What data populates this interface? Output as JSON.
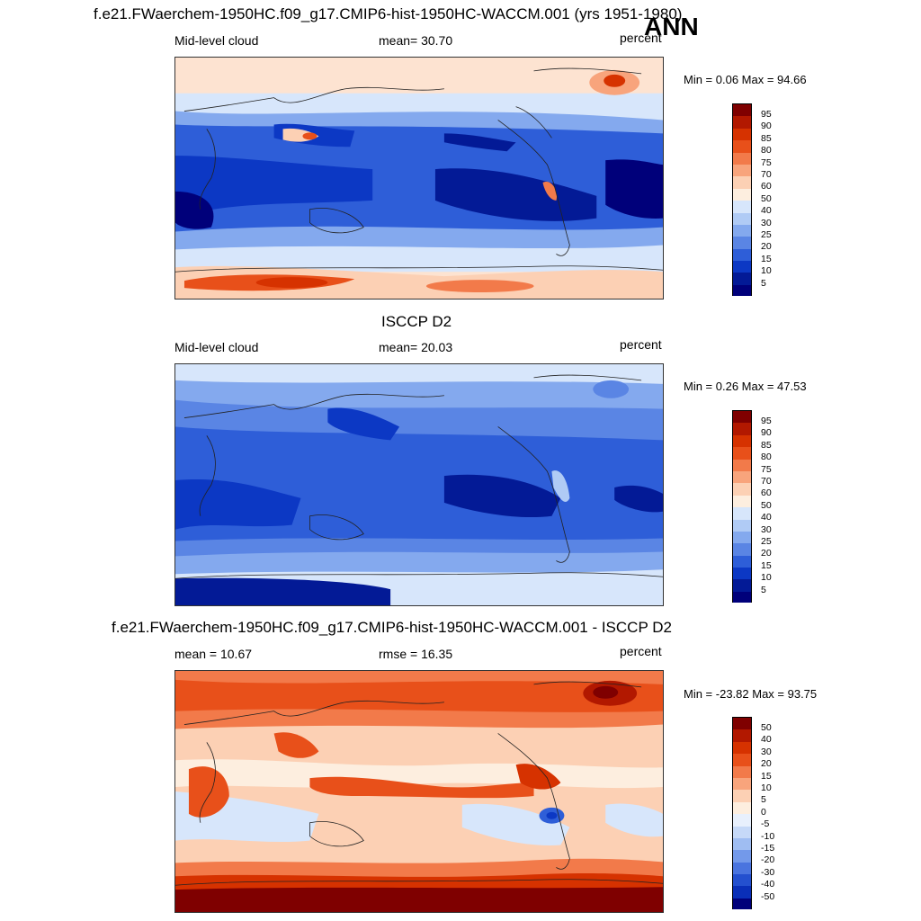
{
  "header": {
    "title": "f.e21.FWaerchem-1950HC.f09_g17.CMIP6-hist-1950HC-WACCM.001 (yrs 1951-1980)",
    "season": "ANN"
  },
  "panels": [
    {
      "id": "model",
      "left_label": "Mid-level cloud",
      "center_label": "mean=  30.70",
      "units": "percent",
      "minmax": "Min =   0.06 Max =  94.66",
      "levels": [
        "95",
        "90",
        "85",
        "80",
        "75",
        "70",
        "60",
        "50",
        "40",
        "30",
        "25",
        "20",
        "15",
        "10",
        "5"
      ]
    },
    {
      "id": "obs",
      "title": "ISCCP D2",
      "left_label": "Mid-level cloud",
      "center_label": "mean=  20.03",
      "units": "percent",
      "minmax": "Min =   0.26 Max =  47.53",
      "levels": [
        "95",
        "90",
        "85",
        "80",
        "75",
        "70",
        "60",
        "50",
        "40",
        "30",
        "25",
        "20",
        "15",
        "10",
        "5"
      ]
    },
    {
      "id": "diff",
      "title": "f.e21.FWaerchem-1950HC.f09_g17.CMIP6-hist-1950HC-WACCM.001 - ISCCP D2",
      "left_label": "mean =  10.67",
      "center_label": "rmse =  16.35",
      "units": "percent",
      "minmax": "Min = -23.82 Max =  93.75",
      "levels": [
        "50",
        "40",
        "30",
        "20",
        "15",
        "10",
        "5",
        "0",
        "-5",
        "-10",
        "-15",
        "-20",
        "-30",
        "-40",
        "-50"
      ]
    }
  ],
  "colors": {
    "abs_scale": [
      "#7f0000",
      "#b21800",
      "#d63200",
      "#e8501a",
      "#f27a4a",
      "#f8a47c",
      "#fcd0b4",
      "#fdeedf",
      "#d7e6fb",
      "#b0cbf5",
      "#84a9ee",
      "#5a85e4",
      "#2e5ed8",
      "#0c38c4",
      "#031a96",
      "#00007a"
    ],
    "diff_scale": [
      "#7f0000",
      "#b21800",
      "#d63200",
      "#e8501a",
      "#f27a4a",
      "#f8a47c",
      "#fcd0b4",
      "#fdeedf",
      "#e8f0fd",
      "#c6d9f8",
      "#9fbdf2",
      "#7399ea",
      "#4a74df",
      "#2450cf",
      "#0a2fb8",
      "#00007a"
    ]
  }
}
